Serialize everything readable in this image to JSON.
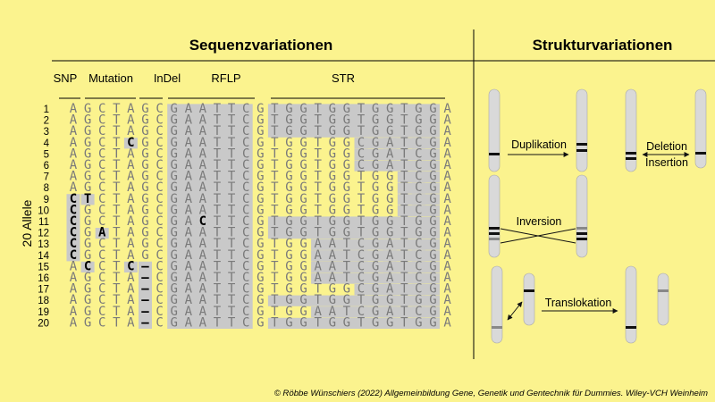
{
  "headings": {
    "sequence": "Sequenzvariationen",
    "structure": "Strukturvariationen"
  },
  "side_label": "20 Allele",
  "categories": [
    "SNP",
    "Mutation",
    "InDel",
    "RFLP",
    "STR"
  ],
  "alleles": [
    "AGCTAGCGAATTCGTGGTGGTGGTGGA",
    "AGCTAGCGAATTCGTGGTGGTGGTGGA",
    "AGCTAGCGAATTCGTGGTGGTGGTGGA",
    "AGCTCGCGAATTCGTGGTGGCGATCGA",
    "AGCTAGCGAATTCGTGGTGGCGATCGA",
    "AGCTAGCGAATTCGTGGTGGCGATCGA",
    "AGCTAGCGAATTCGTGGTGGTGGTCGA",
    "AGCTAGCGAATTCGTGGTGGTGGTCGA",
    "CTCTAGCGAATTCGTGGTGGTGGTCGA",
    "CGCTAGCGAATTCGTGGTGGTGGTCGA",
    "CGCTAGCGACTTCGTGGTGGTGGTGGA",
    "CGATAGCGAATTCGTGGTGGTGGTGGA",
    "CGCTAGCGAATTCGTGGAATCGATCGA",
    "CGCTAGCGAATTCGTGGAATCGATCGA",
    "ACCTC–CGAATTCGTGGAATCGATCGA",
    "AGCTA–CGAATTCGTGGAATCGATCGA",
    "AGCTA–CGAATTCGTGGTGGCGATCGA",
    "AGCTA–CGAATTCGTGGTGGTGGTGGA",
    "AGCTA–CGAATTCGTGGAATCGATCGA",
    "AGCTA–CGAATTCGTGGTGGTGGTGGA"
  ],
  "sv_labels": {
    "duplication": "Duplikation",
    "deletion": "Deletion",
    "insertion": "Insertion",
    "inversion": "Inversion",
    "translocation": "Translokation"
  },
  "copyright": "© Röbbe Wünschiers (2022) Allgemeinbildung Gene, Genetik und Gentechnik für Dummies. Wiley-VCH Weinheim",
  "colors": {
    "background": "#fbf38e",
    "highlight": "#c9c9c9",
    "chromosome": "#d9d9d9",
    "band_dark": "#111111",
    "band_grey": "#888888",
    "text_grey": "#7a7a7a"
  }
}
